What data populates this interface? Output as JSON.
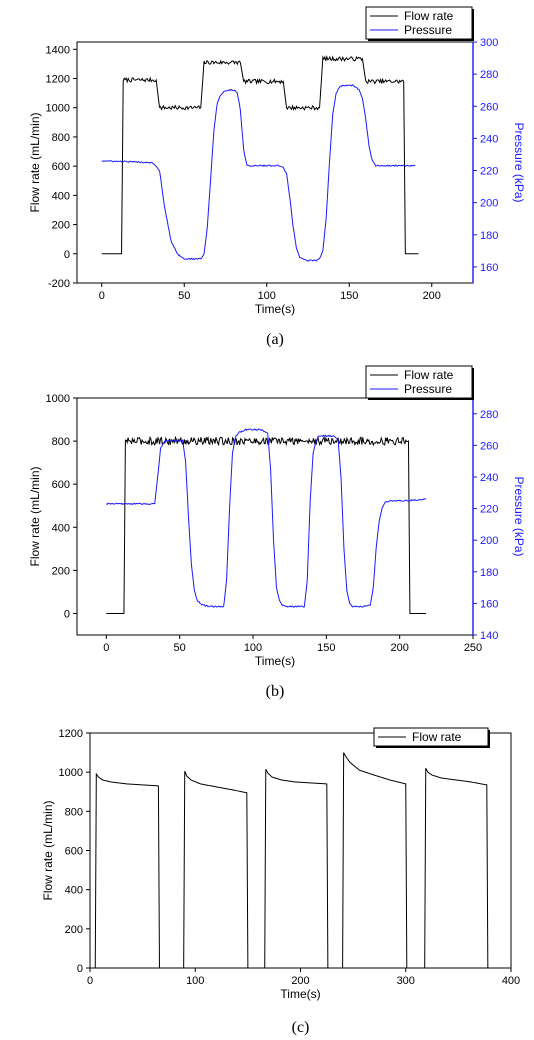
{
  "chart_data": [
    {
      "type": "line",
      "caption": "(a)",
      "xlabel": "Time(s)",
      "ylabel": "Flow rate (mL/min)",
      "y2label": "Pressure (kPa)",
      "xlim": [
        -15,
        225
      ],
      "ylim": [
        -200,
        1450
      ],
      "y2lim": [
        150,
        300
      ],
      "xticks": [
        0,
        50,
        100,
        150,
        200
      ],
      "yticks": [
        -200,
        0,
        200,
        400,
        600,
        800,
        1000,
        1200,
        1400
      ],
      "y2ticks": [
        160,
        180,
        200,
        220,
        240,
        260,
        280,
        300
      ],
      "legend": [
        "Flow rate",
        "Pressure"
      ],
      "colors": {
        "flow": "#000000",
        "pressure": "#1a1aff"
      },
      "series": [
        {
          "name": "Flow rate",
          "axis": "left",
          "x": [
            0,
            12,
            13,
            33,
            35,
            60,
            62,
            84,
            86,
            110,
            112,
            132,
            134,
            158,
            160,
            183,
            184,
            192
          ],
          "y": [
            0,
            0,
            1190,
            1190,
            1000,
            1000,
            1310,
            1310,
            1180,
            1180,
            1000,
            1000,
            1335,
            1335,
            1180,
            1180,
            0,
            0
          ],
          "noise": 14
        },
        {
          "name": "Pressure",
          "axis": "right",
          "x": [
            0,
            30,
            32,
            35,
            38,
            42,
            46,
            50,
            55,
            60,
            62,
            64,
            66,
            68,
            70,
            72,
            74,
            76,
            78,
            80,
            82,
            84,
            86,
            88,
            108,
            110,
            112,
            114,
            116,
            118,
            120,
            122,
            124,
            126,
            128,
            130,
            132,
            134,
            136,
            138,
            140,
            142,
            144,
            146,
            148,
            150,
            152,
            154,
            156,
            158,
            160,
            162,
            164,
            166,
            168,
            170,
            175,
            190
          ],
          "y": [
            226,
            225,
            224,
            220,
            198,
            176,
            168,
            165,
            165,
            165,
            168,
            185,
            215,
            245,
            262,
            267,
            269,
            270,
            270,
            270,
            269,
            258,
            233,
            223,
            223,
            222,
            218,
            203,
            185,
            172,
            166,
            165,
            164,
            164,
            164,
            164,
            165,
            170,
            190,
            225,
            255,
            268,
            272,
            273,
            273,
            273,
            273,
            272,
            270,
            265,
            252,
            235,
            226,
            223,
            223,
            223,
            223,
            223
          ],
          "noise": 0.4
        }
      ]
    },
    {
      "type": "line",
      "caption": "(b)",
      "xlabel": "Time(s)",
      "ylabel": "Flow rate (mL/min)",
      "y2label": "Pressure (kPa)",
      "xlim": [
        -20,
        250
      ],
      "ylim": [
        -100,
        1000
      ],
      "y2lim": [
        140,
        290
      ],
      "xticks": [
        0,
        50,
        100,
        150,
        200,
        250
      ],
      "yticks": [
        0,
        200,
        400,
        600,
        800,
        1000
      ],
      "y2ticks": [
        140,
        160,
        180,
        200,
        220,
        240,
        260,
        280
      ],
      "legend": [
        "Flow rate",
        "Pressure"
      ],
      "colors": {
        "flow": "#000000",
        "pressure": "#1a1aff"
      },
      "series": [
        {
          "name": "Flow rate",
          "axis": "left",
          "x": [
            0,
            12,
            13,
            206,
            207,
            218
          ],
          "y": [
            0,
            0,
            800,
            800,
            0,
            0
          ],
          "noise": 18
        },
        {
          "name": "Pressure",
          "axis": "right",
          "x": [
            0,
            33,
            35,
            37,
            40,
            52,
            54,
            56,
            58,
            60,
            62,
            65,
            70,
            80,
            82,
            84,
            86,
            88,
            90,
            95,
            105,
            110,
            112,
            114,
            116,
            118,
            120,
            122,
            126,
            135,
            137,
            139,
            141,
            143,
            145,
            150,
            155,
            158,
            160,
            162,
            164,
            166,
            168,
            170,
            175,
            180,
            182,
            184,
            186,
            188,
            190,
            195,
            205,
            218
          ],
          "y": [
            223,
            223,
            240,
            258,
            263,
            263,
            250,
            215,
            185,
            168,
            162,
            159,
            158,
            158,
            175,
            220,
            255,
            265,
            268,
            270,
            270,
            268,
            245,
            200,
            170,
            162,
            159,
            158,
            158,
            158,
            175,
            225,
            255,
            263,
            266,
            266,
            266,
            264,
            240,
            195,
            168,
            160,
            158,
            158,
            158,
            159,
            170,
            195,
            212,
            220,
            224,
            225,
            225,
            226
          ],
          "noise": 0.4
        }
      ]
    },
    {
      "type": "line",
      "caption": "(c)",
      "xlabel": "Time(s)",
      "ylabel": "Flow rate (mL/min)",
      "xlim": [
        0,
        400
      ],
      "ylim": [
        0,
        1200
      ],
      "xticks": [
        0,
        100,
        200,
        300,
        400
      ],
      "yticks": [
        0,
        200,
        400,
        600,
        800,
        1000,
        1200
      ],
      "legend": [
        "Flow rate"
      ],
      "colors": {
        "flow": "#000000"
      },
      "series": [
        {
          "name": "Flow rate",
          "axis": "left",
          "x": [
            5,
            6,
            8,
            12,
            20,
            35,
            50,
            65,
            66,
            89,
            90,
            92,
            96,
            105,
            120,
            135,
            149,
            150,
            166,
            167,
            169,
            173,
            182,
            195,
            210,
            225,
            226,
            240,
            241,
            243,
            247,
            256,
            270,
            285,
            300,
            301,
            318,
            319,
            321,
            325,
            334,
            348,
            362,
            377,
            378
          ],
          "y": [
            0,
            990,
            975,
            960,
            950,
            940,
            935,
            930,
            0,
            0,
            1005,
            980,
            960,
            940,
            925,
            910,
            895,
            0,
            0,
            1015,
            995,
            975,
            960,
            950,
            945,
            940,
            0,
            0,
            1100,
            1080,
            1050,
            1010,
            985,
            960,
            940,
            0,
            0,
            1020,
            1000,
            985,
            970,
            960,
            950,
            935,
            0
          ],
          "noise": 0
        }
      ]
    }
  ]
}
